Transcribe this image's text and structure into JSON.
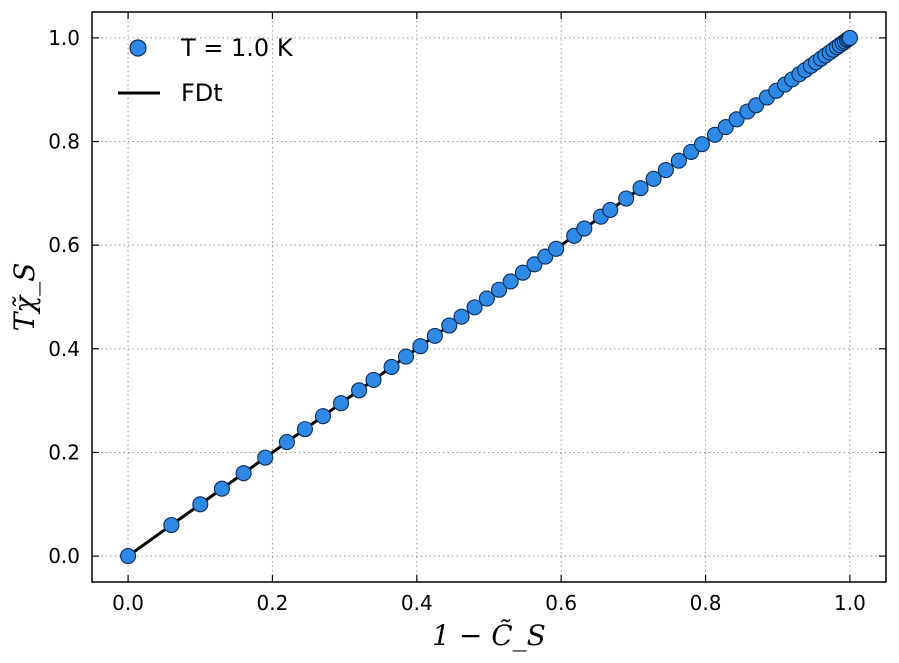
{
  "chart_data": {
    "type": "scatter",
    "xlabel": "1 − C̃_S",
    "ylabel": "Tχ̃_S",
    "xlim": [
      -0.05,
      1.05
    ],
    "ylim": [
      -0.05,
      1.05
    ],
    "xticks": [
      "0.0",
      "0.2",
      "0.4",
      "0.6",
      "0.8",
      "1.0"
    ],
    "yticks": [
      "0.0",
      "0.2",
      "0.4",
      "0.6",
      "0.8",
      "1.0"
    ],
    "grid": true,
    "legend_position": "top-left",
    "series": [
      {
        "name": "T = 1.0 K",
        "kind": "scatter",
        "color": "#2e8ae6",
        "edge_color": "#0b2a55",
        "x": [
          0.0,
          0.06,
          0.1,
          0.13,
          0.16,
          0.19,
          0.22,
          0.245,
          0.27,
          0.295,
          0.32,
          0.34,
          0.365,
          0.385,
          0.405,
          0.425,
          0.445,
          0.462,
          0.48,
          0.497,
          0.514,
          0.53,
          0.547,
          0.563,
          0.578,
          0.593,
          0.618,
          0.632,
          0.655,
          0.668,
          0.69,
          0.71,
          0.728,
          0.745,
          0.763,
          0.78,
          0.795,
          0.813,
          0.828,
          0.843,
          0.858,
          0.87,
          0.885,
          0.898,
          0.91,
          0.92,
          0.93,
          0.938,
          0.946,
          0.953,
          0.96,
          0.966,
          0.972,
          0.977,
          0.982,
          0.986,
          0.99,
          0.993,
          0.996,
          0.998,
          1.0
        ],
        "y": [
          0.0,
          0.06,
          0.1,
          0.13,
          0.16,
          0.19,
          0.22,
          0.245,
          0.27,
          0.295,
          0.32,
          0.34,
          0.365,
          0.385,
          0.405,
          0.425,
          0.445,
          0.462,
          0.48,
          0.497,
          0.514,
          0.53,
          0.547,
          0.563,
          0.578,
          0.593,
          0.618,
          0.632,
          0.655,
          0.668,
          0.69,
          0.71,
          0.728,
          0.745,
          0.763,
          0.78,
          0.795,
          0.813,
          0.828,
          0.843,
          0.858,
          0.87,
          0.885,
          0.898,
          0.91,
          0.92,
          0.93,
          0.938,
          0.946,
          0.953,
          0.96,
          0.966,
          0.972,
          0.977,
          0.982,
          0.986,
          0.99,
          0.993,
          0.996,
          0.998,
          1.0
        ]
      },
      {
        "name": "FDt",
        "kind": "line",
        "color": "#000000",
        "x": [
          0.0,
          1.0
        ],
        "y": [
          0.0,
          1.0
        ]
      }
    ]
  }
}
